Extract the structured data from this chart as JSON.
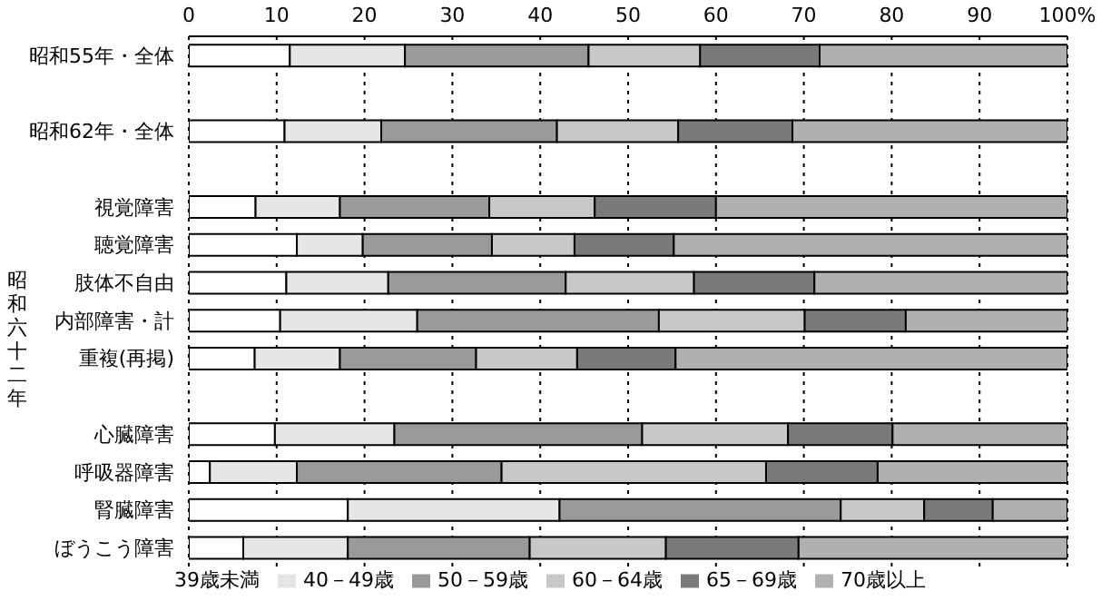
{
  "chart_data": {
    "type": "bar",
    "orientation": "horizontal",
    "stacked": true,
    "categories": [
      "昭和55年・全体",
      null,
      "昭和62年・全体",
      null,
      "視覚障害",
      "聴覚障害",
      "肢体不自由",
      "内部障害・計",
      "重複(再掲)",
      null,
      "心臓障害",
      "呼吸器障害",
      "腎臓障害",
      "ぼうこう障害"
    ],
    "series": [
      {
        "name": "39歳未満",
        "color": "#ffffff",
        "values": [
          11.5,
          null,
          10.9,
          null,
          7.6,
          12.3,
          11.1,
          10.4,
          7.5,
          null,
          9.8,
          2.4,
          18.1,
          6.2
        ]
      },
      {
        "name": "40－49歳",
        "color": "#e6e6e6",
        "values": [
          13.1,
          null,
          11.0,
          null,
          9.6,
          7.5,
          11.6,
          15.6,
          9.7,
          null,
          13.6,
          9.9,
          24.1,
          11.9
        ]
      },
      {
        "name": "50－59歳",
        "color": "#9a9a9a",
        "values": [
          20.9,
          null,
          20.0,
          null,
          17.0,
          14.7,
          20.2,
          27.5,
          15.5,
          null,
          28.2,
          23.3,
          32.0,
          20.7
        ]
      },
      {
        "name": "60－64歳",
        "color": "#c8c8c8",
        "values": [
          12.7,
          null,
          13.8,
          null,
          12.0,
          9.4,
          14.6,
          16.6,
          11.5,
          null,
          16.6,
          30.1,
          9.5,
          15.5
        ]
      },
      {
        "name": "65－69歳",
        "color": "#7a7a7a",
        "values": [
          13.6,
          null,
          13.0,
          null,
          13.8,
          11.3,
          13.7,
          11.5,
          11.2,
          null,
          11.9,
          12.7,
          7.8,
          15.1
        ]
      },
      {
        "name": "70歳以上",
        "color": "#b0b0b0",
        "values": [
          28.2,
          null,
          31.3,
          null,
          40.0,
          44.8,
          28.8,
          18.4,
          44.6,
          null,
          19.9,
          21.6,
          8.5,
          30.6
        ]
      }
    ],
    "xlim": [
      0,
      100
    ],
    "xticks": [
      0,
      10,
      20,
      30,
      40,
      50,
      60,
      70,
      80,
      90,
      {
        "value": 100,
        "label": "100%"
      }
    ],
    "grid": "x",
    "legend": "bottom",
    "annotations": [
      "昭和六十二年"
    ]
  }
}
